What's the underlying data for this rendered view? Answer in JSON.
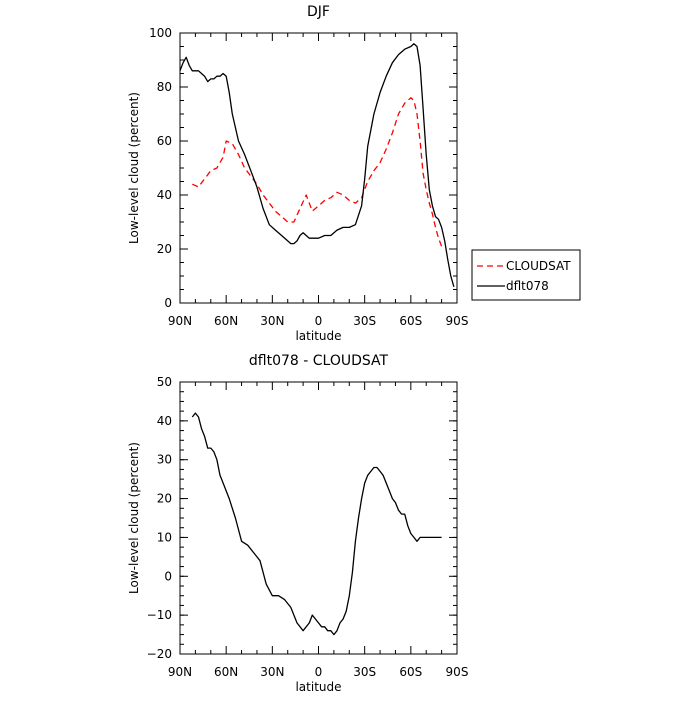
{
  "chart_data": [
    {
      "type": "line",
      "title": "DJF",
      "xlabel": "latitude",
      "ylabel": "Low-level cloud (percent)",
      "xlim": [
        90,
        -90
      ],
      "ylim": [
        0,
        100
      ],
      "x_ticks": [
        90,
        60,
        30,
        0,
        -30,
        -60,
        -90
      ],
      "x_tick_labels": [
        "90N",
        "60N",
        "30N",
        "0",
        "30S",
        "60S",
        "90S"
      ],
      "y_ticks": [
        0,
        20,
        40,
        60,
        80,
        100
      ],
      "y_tick_labels": [
        "0",
        "20",
        "40",
        "60",
        "80",
        "100"
      ],
      "grid": false,
      "legend_position": "right",
      "series": [
        {
          "name": "CLOUDSAT",
          "color": "#ff0000",
          "dash": "dashed",
          "x": [
            82,
            78,
            74,
            70,
            66,
            62,
            60,
            56,
            52,
            48,
            44,
            40,
            36,
            32,
            28,
            24,
            20,
            16,
            12,
            8,
            4,
            0,
            -4,
            -8,
            -12,
            -16,
            -20,
            -24,
            -28,
            -32,
            -36,
            -40,
            -44,
            -48,
            -52,
            -56,
            -60,
            -62,
            -64,
            -66,
            -68,
            -70,
            -72,
            -74,
            -76,
            -78,
            -80
          ],
          "y": [
            44,
            43,
            46,
            49,
            50,
            54,
            60,
            59,
            55,
            50,
            47,
            44,
            40,
            37,
            34,
            32,
            30,
            30,
            35,
            40,
            34,
            36,
            38,
            39,
            41,
            40,
            38,
            37,
            39,
            45,
            49,
            52,
            57,
            63,
            70,
            74,
            76,
            75,
            70,
            60,
            48,
            42,
            37,
            33,
            28,
            24,
            21
          ]
        },
        {
          "name": "dflt078",
          "color": "#000000",
          "dash": "solid",
          "x": [
            90,
            88,
            86,
            84,
            82,
            80,
            78,
            76,
            74,
            72,
            70,
            68,
            66,
            64,
            62,
            60,
            58,
            56,
            52,
            48,
            44,
            40,
            36,
            32,
            28,
            24,
            20,
            18,
            16,
            14,
            12,
            10,
            8,
            6,
            4,
            2,
            0,
            -4,
            -8,
            -12,
            -16,
            -20,
            -24,
            -28,
            -30,
            -32,
            -36,
            -40,
            -44,
            -48,
            -52,
            -56,
            -60,
            -62,
            -64,
            -66,
            -68,
            -70,
            -72,
            -74,
            -76,
            -78,
            -80,
            -82,
            -84,
            -86,
            -88
          ],
          "y": [
            86,
            89,
            91,
            88,
            86,
            86,
            86,
            85,
            84,
            82,
            83,
            83,
            84,
            84,
            85,
            84,
            78,
            70,
            60,
            55,
            49,
            43,
            35,
            29,
            27,
            25,
            23,
            22,
            22,
            23,
            25,
            26,
            25,
            24,
            24,
            24,
            24,
            25,
            25,
            27,
            28,
            28,
            29,
            36,
            46,
            58,
            70,
            78,
            84,
            89,
            92,
            94,
            95,
            96,
            95,
            88,
            72,
            55,
            42,
            36,
            32,
            31,
            28,
            23,
            16,
            10,
            6
          ]
        }
      ]
    },
    {
      "type": "line",
      "title": "dflt078 - CLOUDSAT",
      "xlabel": "latitude",
      "ylabel": "Low-level cloud (percent)",
      "xlim": [
        90,
        -90
      ],
      "ylim": [
        -20,
        50
      ],
      "x_ticks": [
        90,
        60,
        30,
        0,
        -30,
        -60,
        -90
      ],
      "x_tick_labels": [
        "90N",
        "60N",
        "30N",
        "0",
        "30S",
        "60S",
        "90S"
      ],
      "y_ticks": [
        -20,
        -10,
        0,
        10,
        20,
        30,
        40,
        50
      ],
      "y_tick_labels": [
        "−20",
        "−10",
        "0",
        "10",
        "20",
        "30",
        "40",
        "50"
      ],
      "grid": false,
      "series": [
        {
          "color": "#000000",
          "dash": "solid",
          "x": [
            82,
            80,
            78,
            76,
            74,
            72,
            70,
            68,
            66,
            64,
            62,
            58,
            54,
            50,
            46,
            42,
            38,
            34,
            30,
            26,
            22,
            18,
            14,
            10,
            6,
            4,
            2,
            0,
            -2,
            -4,
            -6,
            -8,
            -10,
            -12,
            -14,
            -16,
            -18,
            -20,
            -22,
            -24,
            -26,
            -28,
            -30,
            -32,
            -34,
            -36,
            -38,
            -40,
            -42,
            -44,
            -46,
            -48,
            -50,
            -52,
            -54,
            -56,
            -58,
            -60,
            -62,
            -64,
            -66,
            -68,
            -70,
            -72,
            -74,
            -76,
            -78,
            -80
          ],
          "y": [
            41,
            42,
            41,
            38,
            36,
            33,
            33,
            32,
            30,
            26,
            24,
            20,
            15,
            9,
            8,
            6,
            4,
            -2,
            -5,
            -5,
            -6,
            -8,
            -12,
            -14,
            -12,
            -10,
            -11,
            -12,
            -13,
            -13,
            -14,
            -14,
            -15,
            -14,
            -12,
            -11,
            -9,
            -5,
            1,
            9,
            15,
            20,
            24,
            26,
            27,
            28,
            28,
            27,
            26,
            24,
            22,
            20,
            19,
            17,
            16,
            16,
            13,
            11,
            10,
            9,
            10,
            10,
            10,
            10,
            10,
            10,
            10,
            10
          ]
        }
      ]
    }
  ]
}
